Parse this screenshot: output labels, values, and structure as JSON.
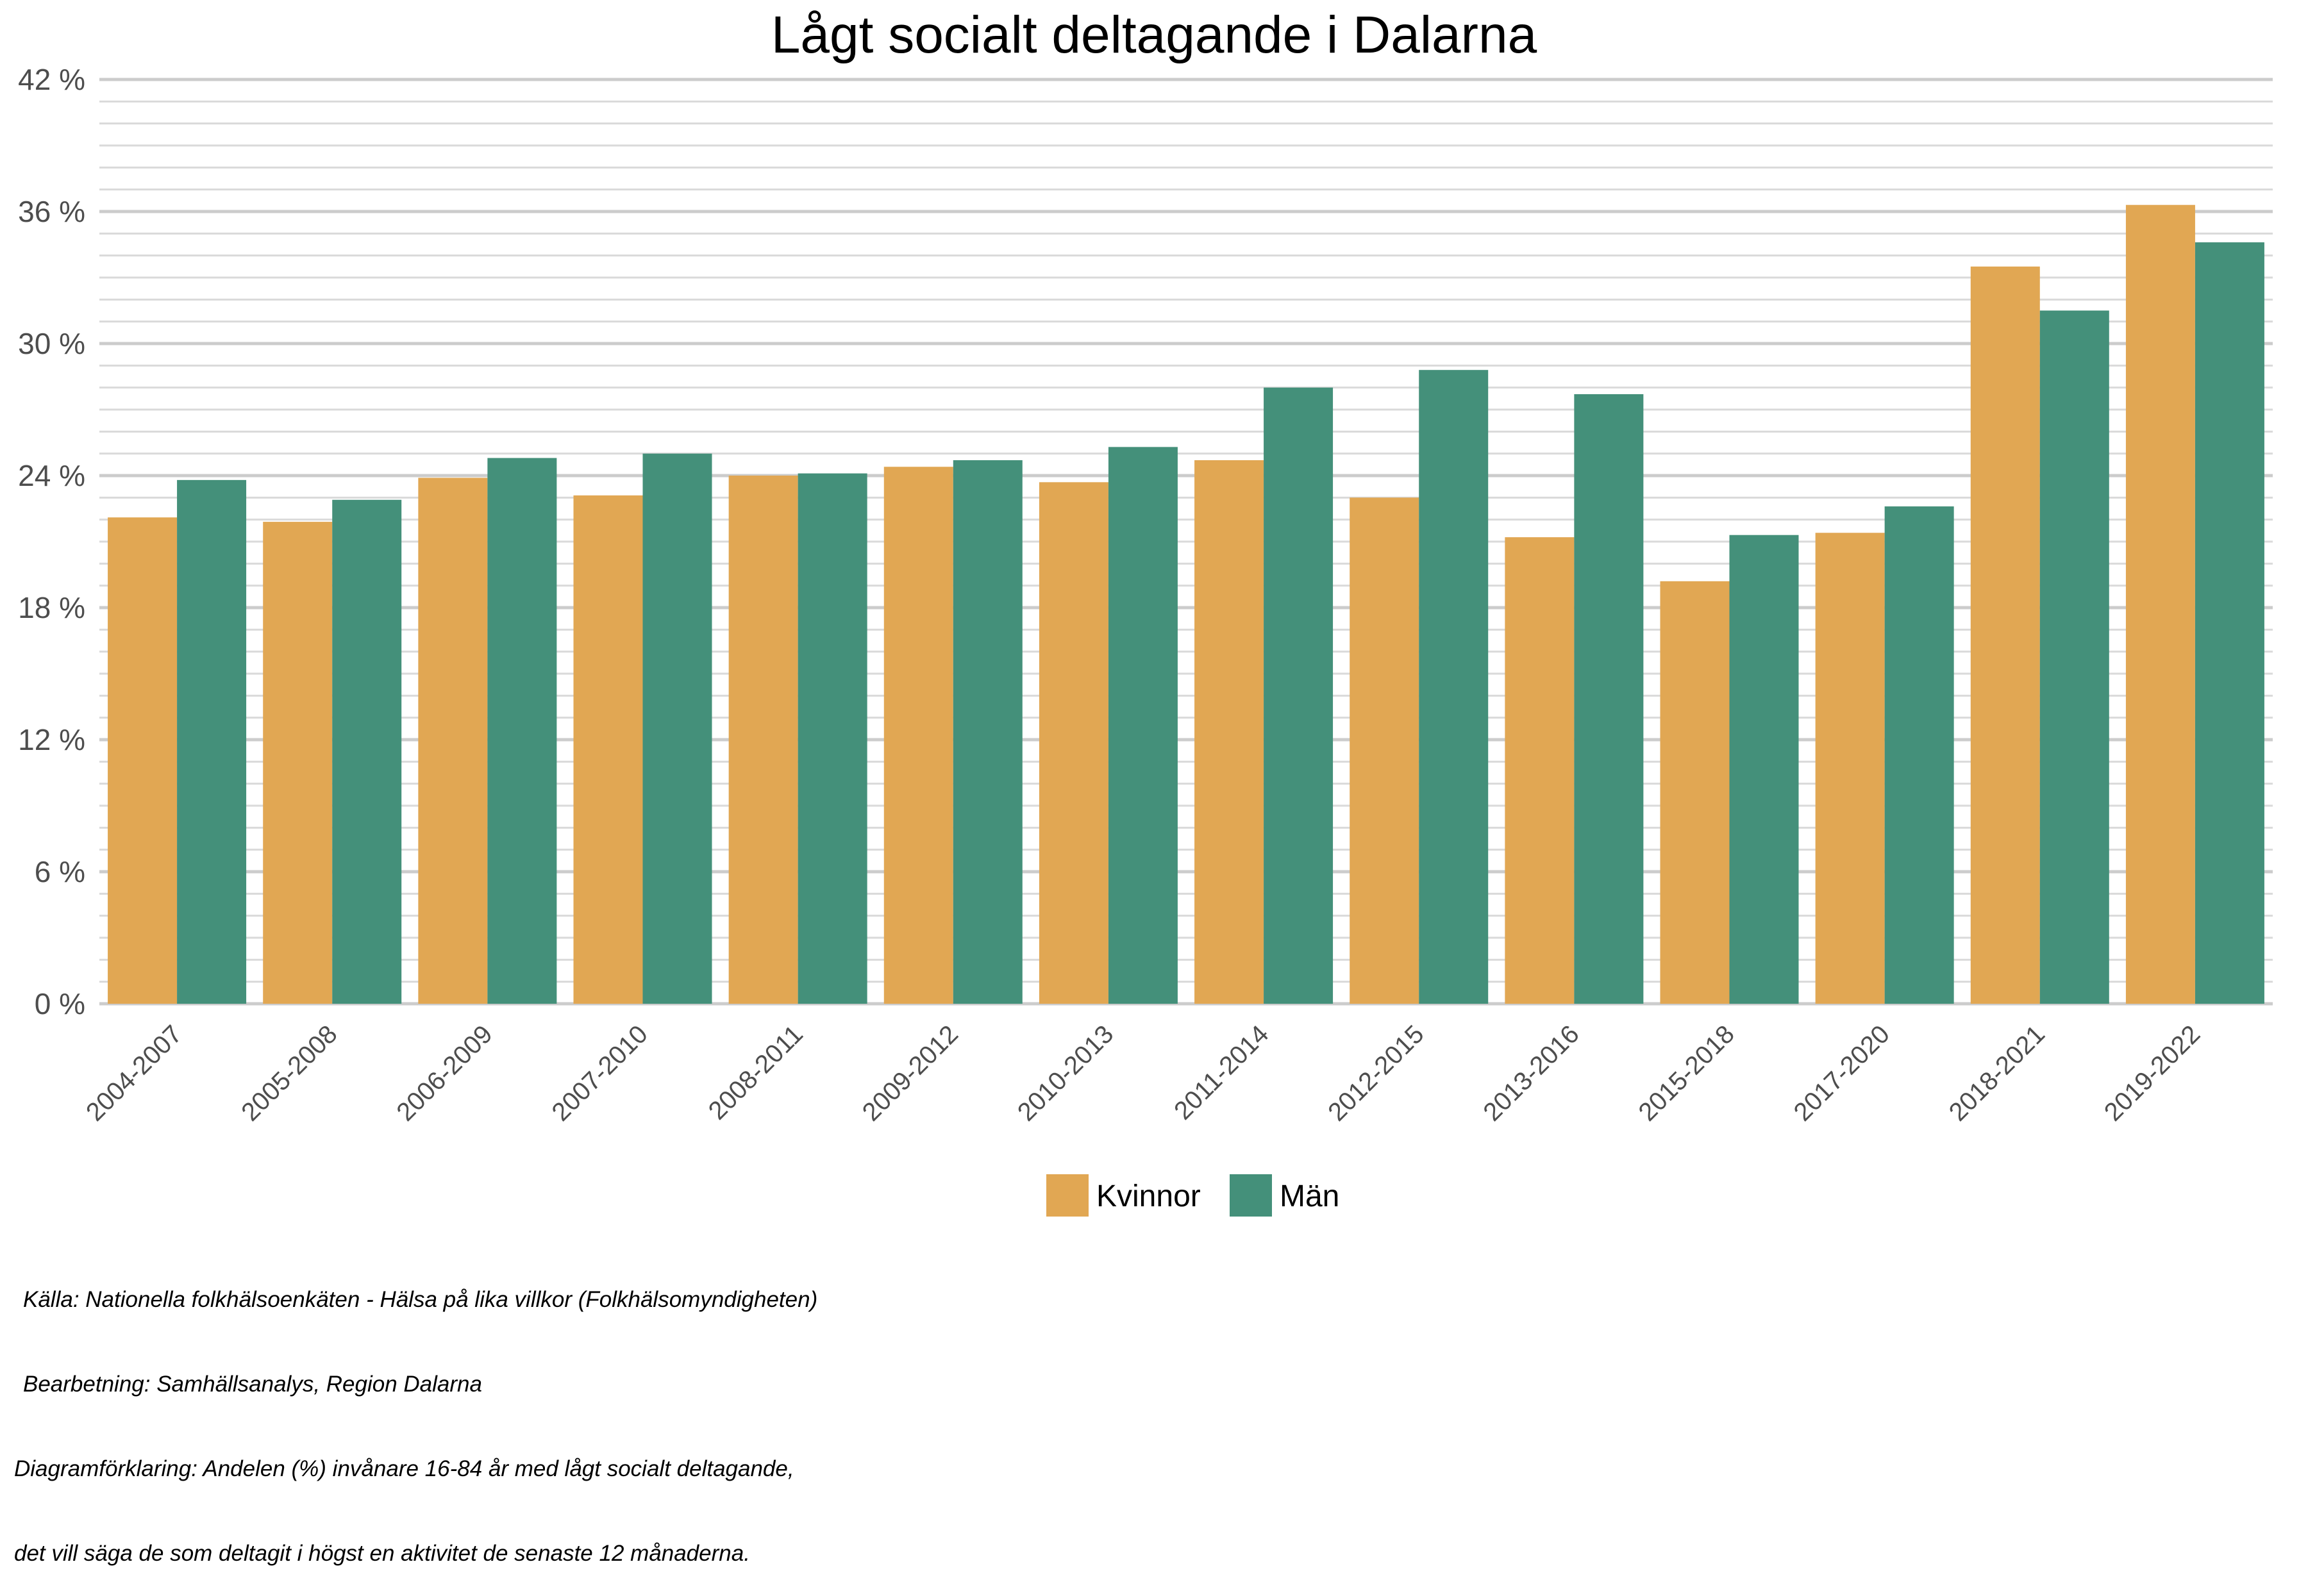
{
  "chart_data": {
    "type": "bar",
    "title": "Lågt socialt deltagande i Dalarna",
    "categories": [
      "2004-2007",
      "2005-2008",
      "2006-2009",
      "2007-2010",
      "2008-2011",
      "2009-2012",
      "2010-2013",
      "2011-2014",
      "2012-2015",
      "2013-2016",
      "2015-2018",
      "2017-2020",
      "2018-2021",
      "2019-2022"
    ],
    "series": [
      {
        "name": "Kvinnor",
        "color": "#E1A753",
        "values": [
          22.1,
          21.9,
          23.9,
          23.1,
          24.0,
          24.4,
          23.7,
          24.7,
          23.0,
          21.2,
          19.2,
          21.4,
          33.5,
          36.3
        ]
      },
      {
        "name": "Män",
        "color": "#44907A",
        "values": [
          23.8,
          22.9,
          24.8,
          25.0,
          24.1,
          24.7,
          25.3,
          28.0,
          28.8,
          27.7,
          21.3,
          22.6,
          31.5,
          34.6
        ]
      }
    ],
    "ylim": [
      0,
      42
    ],
    "yticks": [
      0,
      6,
      12,
      18,
      24,
      30,
      36,
      42
    ],
    "ytick_labels": [
      "0 %",
      "6 %",
      "12 %",
      "18 %",
      "24 %",
      "30 %",
      "36 %",
      "42 %"
    ],
    "minor_step": 1,
    "grid": true,
    "legend_position": "bottom"
  },
  "caption": {
    "source": "Källa: Nationella folkhälsoenkäten - Hälsa på lika villkor (Folkhälsomyndigheten)",
    "processing": "Bearbetning: Samhällsanalys, Region Dalarna",
    "explanation_1": "Diagramförklaring: Andelen (%) invånare 16-84 år med lågt socialt deltagande,",
    "explanation_2": "det vill säga de som deltagit i högst en aktivitet de senaste 12 månaderna."
  }
}
